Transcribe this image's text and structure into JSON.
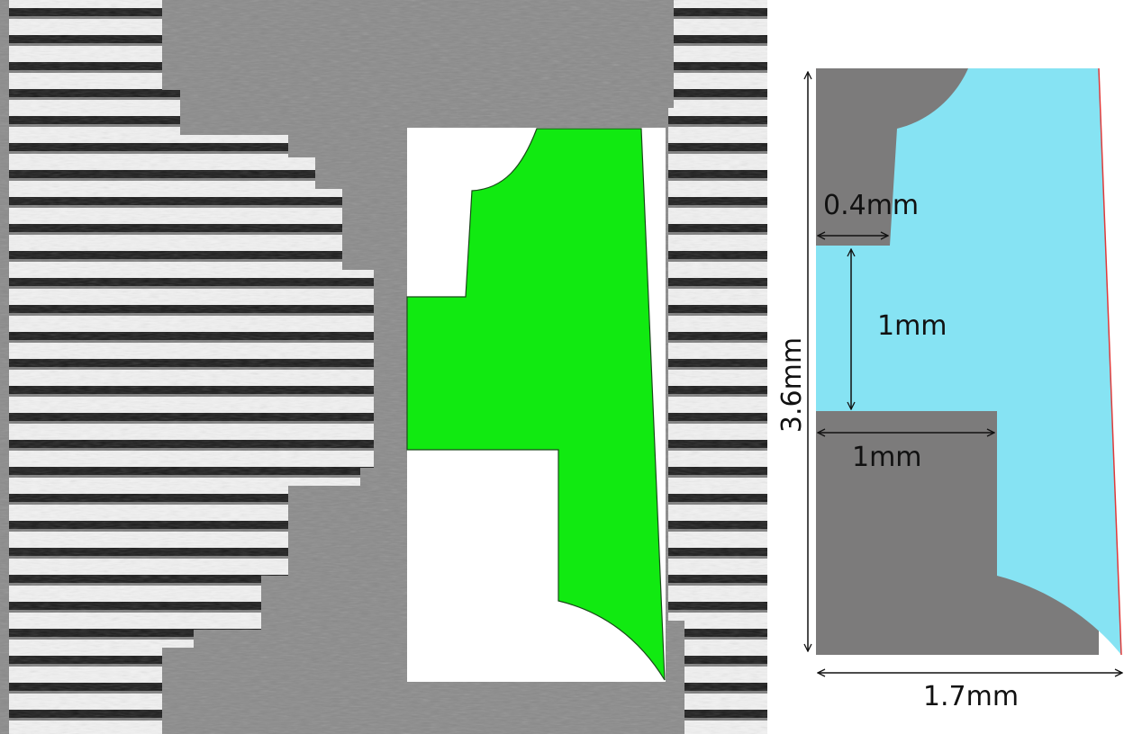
{
  "colors": {
    "microscopy_gray": "#8a8a8a",
    "stripe_dark": "#1a1a1a",
    "stripe_light": "#f2f2f2",
    "segmentation_green": "#11ea11",
    "model_cyan": "#86e3f3",
    "model_gray": "#7c7b7b",
    "edge_red": "#e03a3a",
    "dimension_line": "#111111"
  },
  "panels": {
    "left": {
      "content": "microscopy image with green segmentation overlay"
    },
    "right": {
      "content": "schematic model"
    }
  },
  "dimensions": {
    "height_label": "3.6mm",
    "width_label": "1.7mm",
    "upper_step_label": "0.4mm",
    "gap_label": "1mm",
    "lower_step_label": "1mm"
  },
  "icons": [
    "double-arrow-icon"
  ]
}
